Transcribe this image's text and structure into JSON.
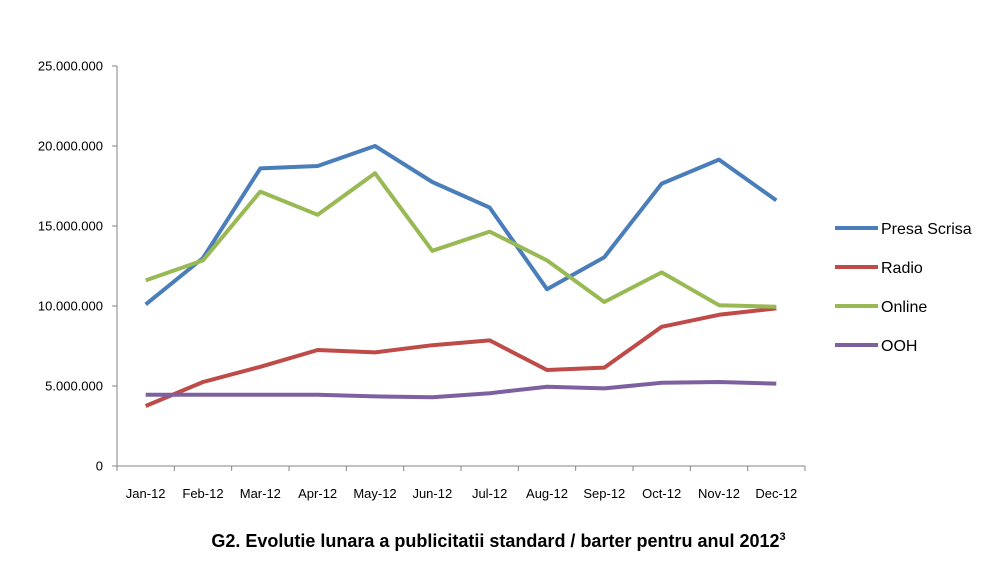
{
  "chart_data": {
    "type": "line",
    "title": "G2. Evolutie lunara a publicitatii standard / barter pentru anul 2012",
    "title_footnote": "3",
    "xlabel": "",
    "ylabel": "",
    "ylim": [
      0,
      25000000
    ],
    "yticks": [
      0,
      5000000,
      10000000,
      15000000,
      20000000,
      25000000
    ],
    "ytick_labels": [
      "0",
      "5.000.000",
      "10.000.000",
      "15.000.000",
      "20.000.000",
      "25.000.000"
    ],
    "categories": [
      "Jan-12",
      "Feb-12",
      "Mar-12",
      "Apr-12",
      "May-12",
      "Jun-12",
      "Jul-12",
      "Aug-12",
      "Sep-12",
      "Oct-12",
      "Nov-12",
      "Dec-12"
    ],
    "grid": false,
    "legend_position": "right",
    "series": [
      {
        "name": "Presa Scrisa",
        "color": "#4a7ebb",
        "values": [
          10100000,
          13000000,
          18600000,
          18750000,
          20000000,
          17750000,
          16150000,
          11050000,
          13050000,
          17650000,
          19150000,
          16600000
        ]
      },
      {
        "name": "Radio",
        "color": "#be4b48",
        "values": [
          3750000,
          5250000,
          6200000,
          7250000,
          7100000,
          7550000,
          7850000,
          6000000,
          6150000,
          8700000,
          9450000,
          9850000
        ]
      },
      {
        "name": "Online",
        "color": "#98b954",
        "values": [
          11600000,
          12850000,
          17150000,
          15700000,
          18300000,
          13450000,
          14650000,
          12850000,
          10250000,
          12100000,
          10050000,
          9950000
        ]
      },
      {
        "name": "OOH",
        "color": "#7d60a0",
        "values": [
          4450000,
          4450000,
          4450000,
          4450000,
          4350000,
          4300000,
          4550000,
          4950000,
          4850000,
          5200000,
          5250000,
          5150000
        ]
      }
    ]
  }
}
